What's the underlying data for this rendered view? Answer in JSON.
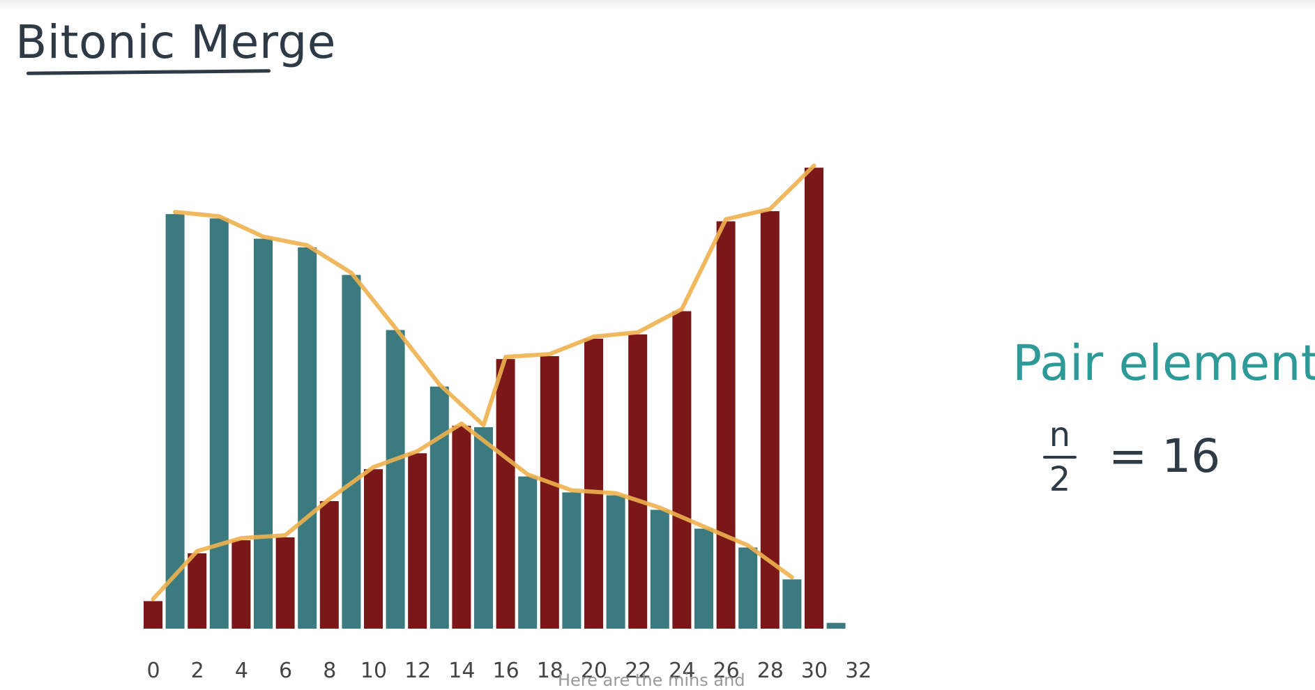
{
  "title": "Bitonic Merge",
  "annotations": {
    "heading": "Pair elements",
    "fraction_numerator": "n",
    "fraction_denominator": "2",
    "equals_value": "= 16"
  },
  "caption": "Here are the mins and",
  "colors": {
    "teal_bars": "#3b7b80",
    "red_bars": "#7a1719",
    "envelope": "#eeb14e",
    "heading": "#2e9a98",
    "ink": "#2f3a47"
  },
  "chart_data": {
    "type": "bar",
    "xlabel": "",
    "ylabel": "",
    "xlim": [
      0,
      32
    ],
    "ylim": [
      0,
      32
    ],
    "grid": false,
    "x_ticks": [
      "0",
      "2",
      "4",
      "6",
      "8",
      "10",
      "12",
      "14",
      "16",
      "18",
      "20",
      "22",
      "24",
      "26",
      "28",
      "30",
      "32"
    ],
    "series": [
      {
        "color": "teal",
        "x": [
          1,
          3,
          5,
          7,
          9,
          11,
          13,
          15,
          17,
          19,
          21,
          23,
          25,
          27,
          29,
          31
        ],
        "values": [
          28.6,
          28.3,
          26.9,
          26.3,
          24.4,
          20.6,
          16.7,
          13.9,
          10.5,
          9.4,
          9.2,
          8.2,
          6.9,
          5.6,
          3.4,
          0.4
        ]
      },
      {
        "color": "dark-red",
        "x": [
          0,
          2,
          4,
          6,
          8,
          10,
          12,
          14,
          16,
          18,
          20,
          22,
          24,
          26,
          28,
          30
        ],
        "values": [
          1.9,
          5.2,
          6.1,
          6.3,
          8.8,
          11.0,
          12.1,
          14.0,
          18.6,
          18.8,
          20.0,
          20.3,
          21.9,
          28.1,
          28.8,
          31.8
        ]
      }
    ]
  }
}
